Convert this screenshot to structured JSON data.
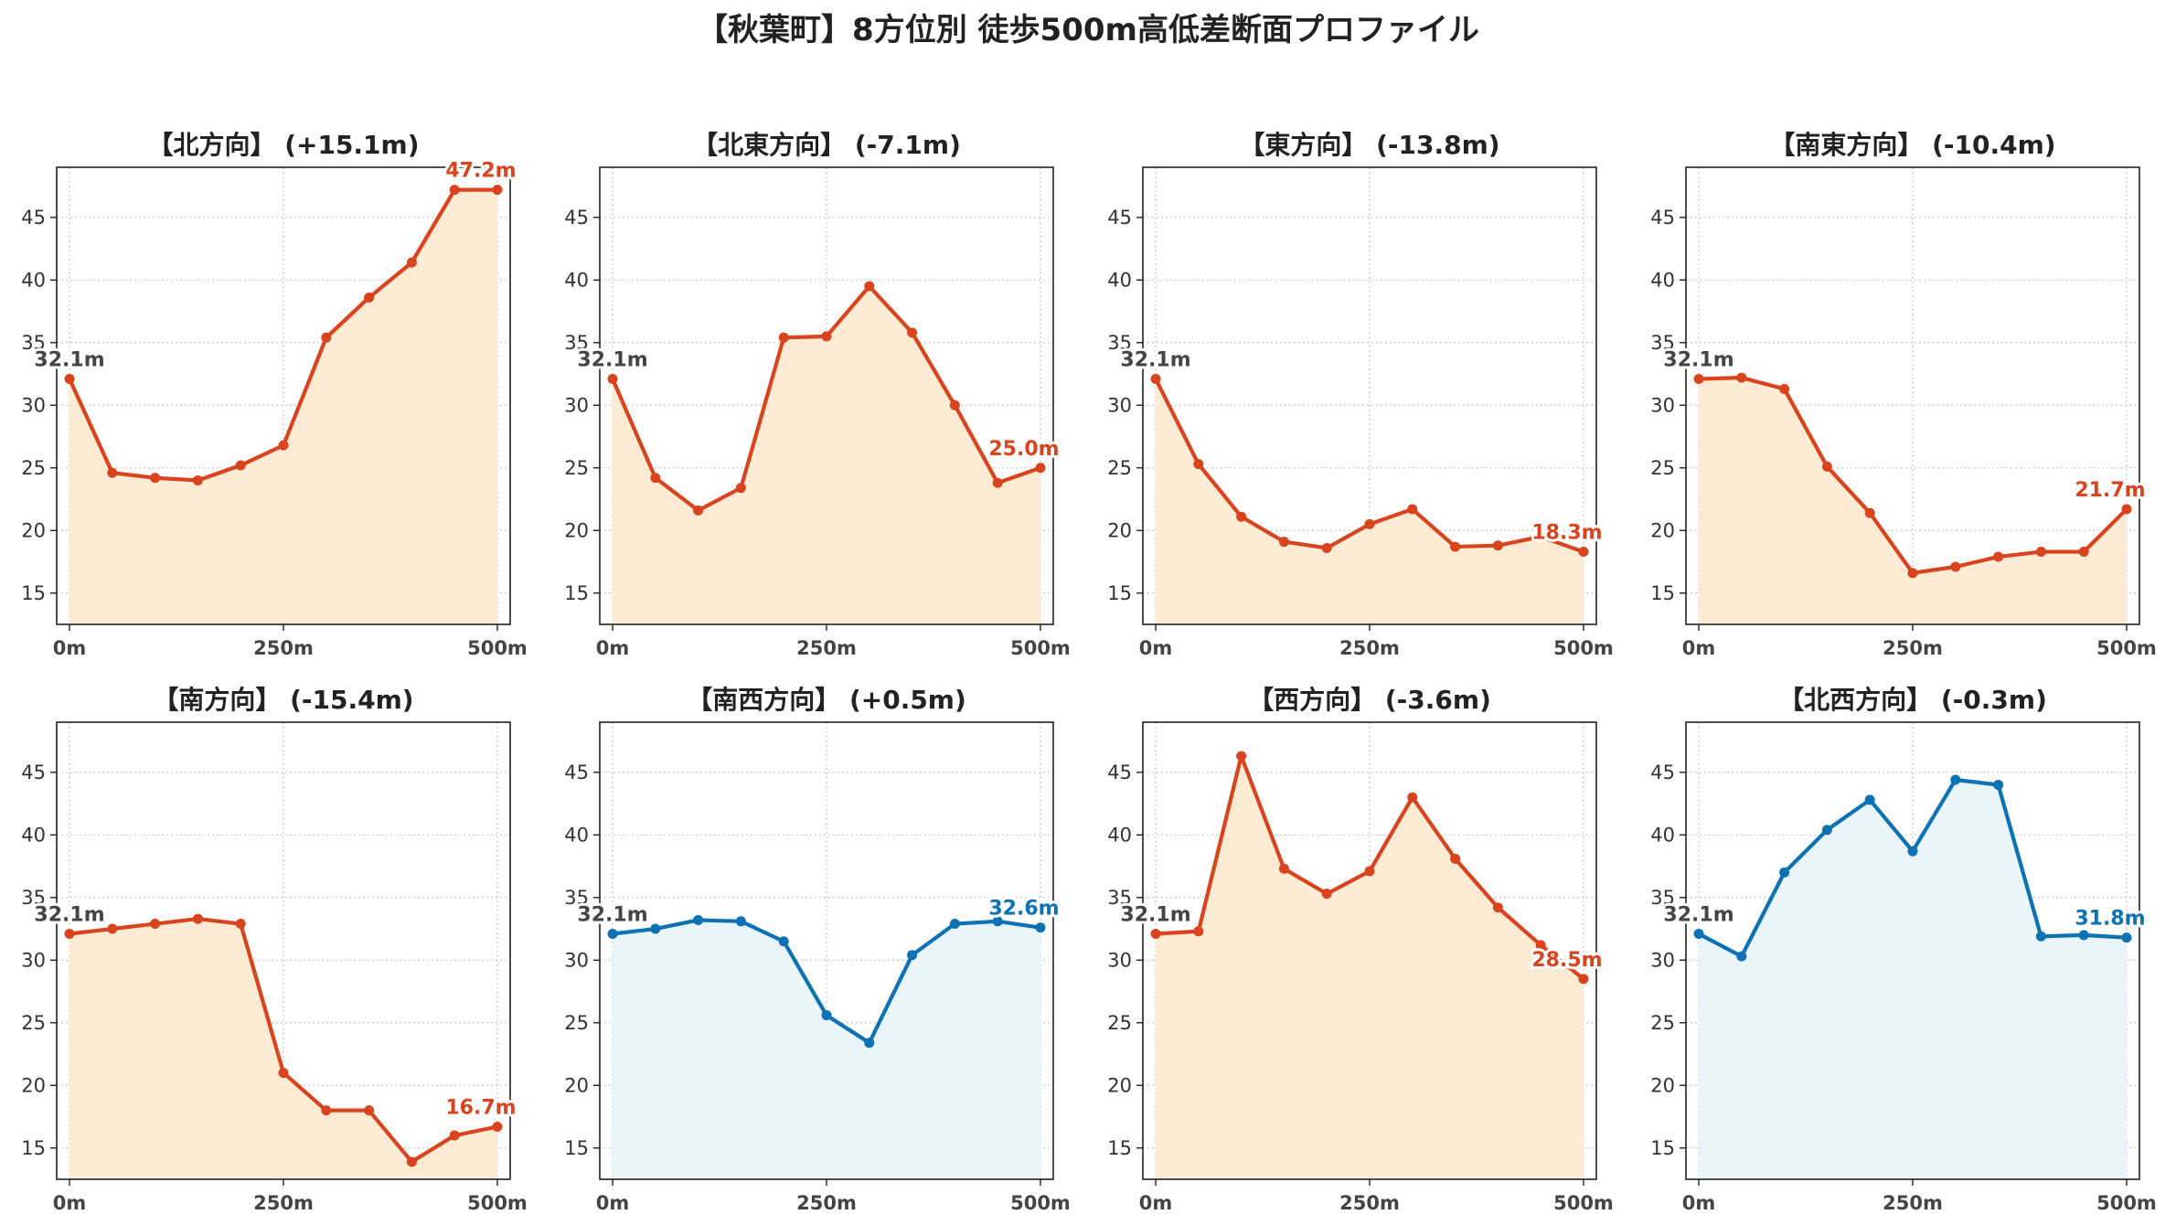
{
  "title": "【秋葉町】8方位別 徒歩500m高低差断面プロファイル",
  "colors": {
    "down": "#d9431e",
    "down_fill": "#fdebd3",
    "up": "#0c72b4",
    "up_fill": "#e9f5fb",
    "start_label": "#444444",
    "grid": "#c8c8c8"
  },
  "chart_data": [
    {
      "type": "area",
      "title": "【北方向】 (+15.1m)",
      "direction": "down",
      "x": [
        0,
        50,
        100,
        150,
        200,
        250,
        300,
        350,
        400,
        450,
        500
      ],
      "y": [
        32.1,
        24.6,
        24.2,
        24.0,
        25.2,
        26.8,
        35.4,
        38.6,
        41.4,
        47.2,
        47.2
      ],
      "start_label": "32.1m",
      "end_label": "47.2m"
    },
    {
      "type": "area",
      "title": "【北東方向】 (-7.1m)",
      "direction": "down",
      "x": [
        0,
        50,
        100,
        150,
        200,
        250,
        300,
        350,
        400,
        450,
        500
      ],
      "y": [
        32.1,
        24.2,
        21.6,
        23.4,
        35.4,
        35.5,
        39.5,
        35.8,
        30.0,
        23.8,
        25.0
      ],
      "start_label": "32.1m",
      "end_label": "25.0m"
    },
    {
      "type": "area",
      "title": "【東方向】 (-13.8m)",
      "direction": "down",
      "x": [
        0,
        50,
        100,
        150,
        200,
        250,
        300,
        350,
        400,
        450,
        500
      ],
      "y": [
        32.1,
        25.3,
        21.1,
        19.1,
        18.6,
        20.5,
        21.7,
        18.7,
        18.8,
        19.5,
        18.3
      ],
      "start_label": "32.1m",
      "end_label": "18.3m"
    },
    {
      "type": "area",
      "title": "【南東方向】 (-10.4m)",
      "direction": "down",
      "x": [
        0,
        50,
        100,
        150,
        200,
        250,
        300,
        350,
        400,
        450,
        500
      ],
      "y": [
        32.1,
        32.2,
        31.3,
        25.1,
        21.4,
        16.6,
        17.1,
        17.9,
        18.3,
        18.3,
        21.7
      ],
      "start_label": "32.1m",
      "end_label": "21.7m"
    },
    {
      "type": "area",
      "title": "【南方向】 (-15.4m)",
      "direction": "down",
      "x": [
        0,
        50,
        100,
        150,
        200,
        250,
        300,
        350,
        400,
        450,
        500
      ],
      "y": [
        32.1,
        32.5,
        32.9,
        33.3,
        32.9,
        21.0,
        18.0,
        18.0,
        13.9,
        16.0,
        16.7
      ],
      "start_label": "32.1m",
      "end_label": "16.7m"
    },
    {
      "type": "area",
      "title": "【南西方向】 (+0.5m)",
      "direction": "up",
      "x": [
        0,
        50,
        100,
        150,
        200,
        250,
        300,
        350,
        400,
        450,
        500
      ],
      "y": [
        32.1,
        32.5,
        33.2,
        33.1,
        31.5,
        25.6,
        23.4,
        30.4,
        32.9,
        33.1,
        32.6
      ],
      "start_label": "32.1m",
      "end_label": "32.6m"
    },
    {
      "type": "area",
      "title": "【西方向】 (-3.6m)",
      "direction": "down",
      "x": [
        0,
        50,
        100,
        150,
        200,
        250,
        300,
        350,
        400,
        450,
        500
      ],
      "y": [
        32.1,
        32.3,
        46.3,
        37.3,
        35.3,
        37.1,
        43.0,
        38.1,
        34.2,
        31.2,
        28.5
      ],
      "start_label": "32.1m",
      "end_label": "28.5m"
    },
    {
      "type": "area",
      "title": "【北西方向】 (-0.3m)",
      "direction": "up",
      "x": [
        0,
        50,
        100,
        150,
        200,
        250,
        300,
        350,
        400,
        450,
        500
      ],
      "y": [
        32.1,
        30.3,
        37.0,
        40.4,
        42.8,
        38.7,
        44.4,
        44.0,
        31.9,
        32.0,
        31.8
      ],
      "start_label": "32.1m",
      "end_label": "31.8m"
    }
  ],
  "axes": {
    "ylim": [
      12.5,
      49
    ],
    "yticks": [
      15,
      20,
      25,
      30,
      35,
      40,
      45
    ],
    "xlim": [
      -15,
      515
    ],
    "xticks": [
      0,
      250,
      500
    ],
    "xtick_labels": [
      "0m",
      "250m",
      "500m"
    ],
    "grid": true
  }
}
